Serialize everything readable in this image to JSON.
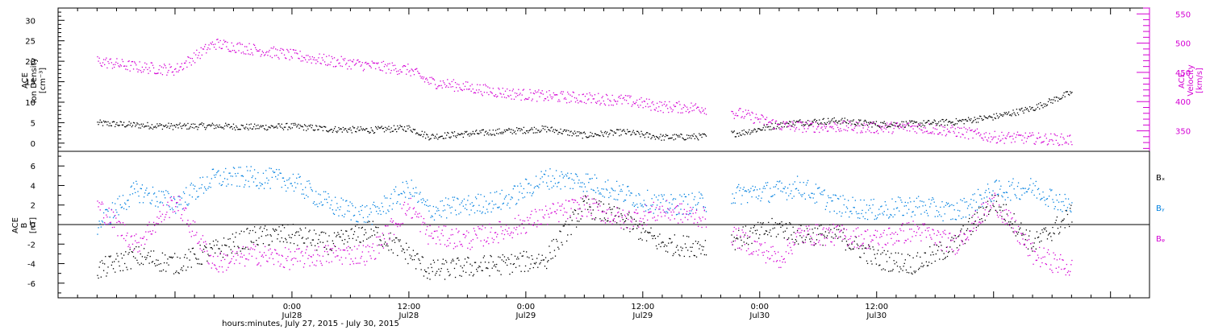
{
  "chart_data": [
    {
      "type": "scatter",
      "panel": "top",
      "ylabel_left": [
        "ACE",
        "Ion Density",
        "[cm⁻³]"
      ],
      "ylabel_right": [
        "ACE",
        "Velocity",
        "[km/s]"
      ],
      "ylim_left": [
        -2,
        33
      ],
      "ylim_right": [
        315,
        560
      ],
      "yticks_left": [
        0,
        5,
        10,
        15,
        20,
        25,
        30
      ],
      "yticks_right": [
        350,
        400,
        450,
        500,
        550
      ],
      "series": [
        {
          "name": "ACE Ion Density",
          "axis": "left",
          "color": "#000000",
          "x_hours": [
            -20,
            -16,
            -12,
            -8,
            -4,
            0,
            4,
            8,
            12,
            14,
            18,
            22,
            26,
            30,
            34,
            38,
            42,
            46,
            50,
            52,
            56,
            60,
            64,
            68,
            72,
            76,
            80
          ],
          "values": [
            5.0,
            4.5,
            4.2,
            4.3,
            4.0,
            4.2,
            3.5,
            3.3,
            3.8,
            1.7,
            2.4,
            3.0,
            3.6,
            2.0,
            2.8,
            1.5,
            1.7,
            2.6,
            4.6,
            5.2,
            5.6,
            4.7,
            4.8,
            5.3,
            6.5,
            8.6,
            12.5
          ]
        },
        {
          "name": "ACE Velocity",
          "axis": "right",
          "color": "#d400d4",
          "x_hours": [
            -20,
            -16,
            -12,
            -8,
            -4,
            0,
            4,
            8,
            12,
            14,
            18,
            22,
            26,
            30,
            34,
            38,
            42,
            46,
            50,
            52,
            56,
            60,
            64,
            68,
            72,
            76,
            80
          ],
          "values": [
            470,
            460,
            455,
            500,
            490,
            480,
            470,
            462,
            455,
            435,
            425,
            415,
            410,
            407,
            403,
            392,
            390,
            380,
            360,
            358,
            358,
            356,
            357,
            350,
            340,
            338,
            335
          ]
        }
      ]
    },
    {
      "type": "scatter",
      "panel": "bottom",
      "ylabel": [
        "ACE",
        "B",
        "[nT]"
      ],
      "ylim": [
        -7.5,
        7.5
      ],
      "yticks": [
        -6,
        -4,
        -2,
        0,
        2,
        4,
        6
      ],
      "legend": [
        "Bₓ",
        "Bᵧ",
        "Bᵩ"
      ],
      "series": [
        {
          "name": "Bx",
          "color": "#000000",
          "x_hours": [
            -20,
            -16,
            -12,
            -8,
            -4,
            0,
            4,
            8,
            12,
            14,
            18,
            22,
            26,
            30,
            34,
            38,
            42,
            46,
            50,
            52,
            56,
            60,
            64,
            68,
            72,
            76,
            80
          ],
          "values": [
            -4.6,
            -3.2,
            -4.0,
            -2.6,
            -1.2,
            -1.0,
            -2.0,
            -0.5,
            -3.0,
            -4.7,
            -4.3,
            -4.0,
            -3.5,
            2.0,
            0.5,
            -2.0,
            -2.2,
            -1.3,
            -0.2,
            -1.0,
            -1.0,
            -3.5,
            -4.0,
            -2.0,
            2.5,
            -2.0,
            1.0
          ]
        },
        {
          "name": "By",
          "color": "#0080e0",
          "x_hours": [
            -20,
            -16,
            -12,
            -8,
            -4,
            0,
            4,
            8,
            12,
            14,
            18,
            22,
            26,
            30,
            34,
            38,
            42,
            46,
            50,
            52,
            56,
            60,
            64,
            68,
            72,
            76,
            80
          ],
          "values": [
            0.0,
            3.5,
            2.2,
            4.8,
            4.9,
            4.5,
            2.0,
            1.0,
            3.8,
            1.5,
            2.0,
            2.6,
            4.8,
            4.5,
            3.2,
            2.0,
            2.3,
            3.2,
            3.5,
            4.0,
            2.0,
            1.5,
            2.0,
            1.3,
            3.5,
            3.8,
            1.8
          ]
        },
        {
          "name": "Bz",
          "color": "#d400d4",
          "x_hours": [
            -20,
            -16,
            -12,
            -8,
            -4,
            0,
            4,
            8,
            12,
            14,
            18,
            22,
            26,
            30,
            34,
            38,
            42,
            46,
            50,
            52,
            56,
            60,
            64,
            68,
            72,
            76,
            80
          ],
          "values": [
            2.0,
            -2.0,
            2.5,
            -4.0,
            -3.0,
            -3.5,
            -3.0,
            -3.0,
            2.0,
            -1.0,
            -1.5,
            -0.5,
            1.0,
            2.0,
            0.5,
            1.5,
            0.8,
            -1.5,
            -3.5,
            -1.0,
            -1.0,
            -1.5,
            -0.5,
            -2.0,
            2.5,
            -3.0,
            -4.5
          ]
        }
      ]
    }
  ],
  "xaxis": {
    "range_hours": [
      -24,
      88
    ],
    "ticks": [
      {
        "hours": 0,
        "time": "0:00",
        "date": "Jul28"
      },
      {
        "hours": 12,
        "time": "12:00",
        "date": "Jul28"
      },
      {
        "hours": 24,
        "time": "0:00",
        "date": "Jul29"
      },
      {
        "hours": 36,
        "time": "12:00",
        "date": "Jul29"
      },
      {
        "hours": 48,
        "time": "0:00",
        "date": "Jul30"
      },
      {
        "hours": 60,
        "time": "12:00",
        "date": "Jul30"
      }
    ],
    "title": "hours:minutes, July 27, 2015 - July 30, 2015"
  },
  "texts": {
    "top_left_l1": "ACE",
    "top_left_l2": "Ion Density",
    "top_left_l3": "[cm⁻³]",
    "top_right_l1": "ACE",
    "top_right_l2": "Velocity",
    "top_right_l3": "[km/s]",
    "bot_left_l1": "ACE",
    "bot_left_l2": "B",
    "bot_left_l3": "[nT]",
    "legend_bx": "Bₓ",
    "legend_by": "Bᵧ",
    "legend_bz": "Bᵩ",
    "xtitle": "hours:minutes, July 27, 2015 - July 30, 2015"
  },
  "colors": {
    "density": "#000000",
    "velocity": "#d400d4",
    "bx": "#000000",
    "by": "#0080e0",
    "bz": "#d400d4"
  }
}
